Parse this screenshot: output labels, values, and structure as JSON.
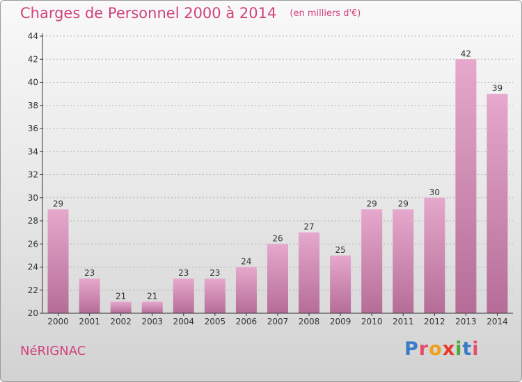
{
  "header": {
    "title": "Charges de Personnel 2000 à 2014",
    "subtitle": "(en milliers d'€)"
  },
  "footer": {
    "commune": "NéRIGNAC",
    "logo_letters": [
      "P",
      "r",
      "o",
      "x",
      "i",
      "t",
      "i"
    ],
    "logo_colors": [
      "#3a7cc8",
      "#e84a6e",
      "#f0a01a",
      "#e8382a",
      "#4aa83c",
      "#3a7cc8",
      "#e84a6e"
    ]
  },
  "colors": {
    "title": "#d0427a",
    "bar_top": "#e6a8cc",
    "bar_bottom": "#b56d98",
    "axis": "#333333",
    "grid": "#b0b0b0"
  },
  "chart_data": {
    "type": "bar",
    "title": "Charges de Personnel 2000 à 2014",
    "subtitle": "(en milliers d'€)",
    "categories": [
      "2000",
      "2001",
      "2002",
      "2003",
      "2004",
      "2005",
      "2006",
      "2007",
      "2008",
      "2009",
      "2010",
      "2011",
      "2012",
      "2013",
      "2014"
    ],
    "values": [
      29,
      23,
      21,
      21,
      23,
      23,
      24,
      26,
      27,
      25,
      29,
      29,
      30,
      42,
      39
    ],
    "ylim": [
      20,
      44
    ],
    "yticks": [
      20,
      22,
      24,
      26,
      28,
      30,
      32,
      34,
      36,
      38,
      40,
      42,
      44
    ],
    "grid": true,
    "data_labels": true
  }
}
